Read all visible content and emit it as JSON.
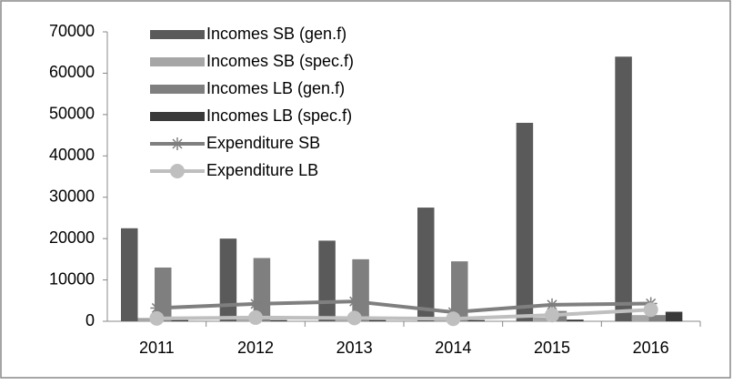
{
  "chart_data": {
    "type": "bar_line",
    "categories": [
      "2011",
      "2012",
      "2013",
      "2014",
      "2015",
      "2016"
    ],
    "series": [
      {
        "name": "Incomes SB (gen.f)",
        "type": "bar",
        "color": "#5a5a5a",
        "values": [
          22500,
          20000,
          19500,
          27500,
          48000,
          64000
        ]
      },
      {
        "name": "Incomes SB (spec.f)",
        "type": "bar",
        "color": "#a6a6a6",
        "values": [
          800,
          800,
          800,
          800,
          900,
          1500
        ]
      },
      {
        "name": "Incomes LB (gen.f)",
        "type": "bar",
        "color": "#7f7f7f",
        "values": [
          13000,
          15300,
          15000,
          14500,
          2500,
          1500
        ]
      },
      {
        "name": "Incomes LB (spec.f)",
        "type": "bar",
        "color": "#3a3a3a",
        "values": [
          300,
          300,
          300,
          300,
          400,
          2300
        ]
      },
      {
        "name": "Expenditure SB",
        "type": "line",
        "marker": "asterisk",
        "color": "#7f7f7f",
        "values": [
          3200,
          4200,
          4800,
          2200,
          4000,
          4300
        ]
      },
      {
        "name": "Expenditure LB",
        "type": "line",
        "marker": "circle",
        "color": "#bfbfbf",
        "values": [
          700,
          900,
          800,
          600,
          1500,
          2800
        ]
      }
    ],
    "ylim": [
      0,
      70000
    ],
    "yticks": [
      0,
      10000,
      20000,
      30000,
      40000,
      50000,
      60000,
      70000
    ],
    "grid": false,
    "legend": "upper left"
  }
}
